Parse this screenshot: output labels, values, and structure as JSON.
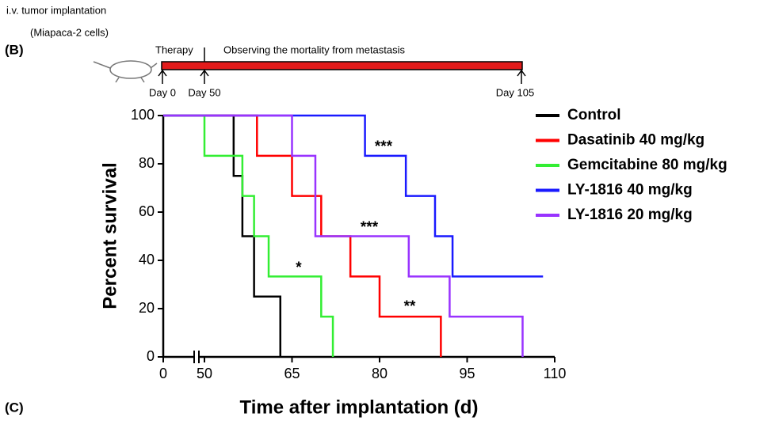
{
  "figure": {
    "panel_b": "(B)",
    "panel_c": "(C)",
    "implant_line1": "i.v. tumor implantation",
    "implant_line2": "(Miapaca-2 cells)",
    "therapy": "Therapy",
    "observing": "Observing the mortality from metastasis",
    "day_labels": [
      "Day 0",
      "Day 50",
      "Day 105"
    ]
  },
  "chart_data": {
    "type": "step",
    "xlabel": "Time after implantation (d)",
    "ylabel": "Percent survival",
    "xlim": [
      0,
      110
    ],
    "x_axis_break": [
      0,
      50
    ],
    "ylim": [
      0,
      100
    ],
    "xticks": [
      0,
      50,
      65,
      80,
      95,
      110
    ],
    "yticks": [
      0,
      20,
      40,
      60,
      80,
      100
    ],
    "legend": "upper right",
    "series": [
      {
        "name": "Control",
        "color": "#000000",
        "x": [
          0,
          55,
          56.5,
          58.5,
          63
        ],
        "values": [
          100,
          75,
          50,
          25,
          0
        ]
      },
      {
        "name": "Dasatinib 40 mg/kg",
        "color": "#ff0000",
        "x": [
          0,
          59,
          65,
          70,
          75,
          80,
          90.5
        ],
        "values": [
          100,
          83.3,
          66.7,
          50,
          33.3,
          16.7,
          0
        ]
      },
      {
        "name": "Gemcitabine 80  mg/kg",
        "color": "#33ee33",
        "x": [
          0,
          50,
          56.5,
          58.5,
          61,
          70,
          72
        ],
        "values": [
          100,
          83.3,
          66.7,
          50,
          33.3,
          16.7,
          0
        ]
      },
      {
        "name": "LY-1816 40 mg/kg",
        "color": "#1a1aff",
        "x": [
          0,
          77.5,
          84.5,
          89.5,
          92.5,
          108
        ],
        "values": [
          100,
          83.3,
          66.7,
          50,
          33.3,
          33.3
        ]
      },
      {
        "name": "LY-1816 20 mg/kg",
        "color": "#9933ff",
        "x": [
          0,
          65,
          69,
          85,
          92,
          104.5
        ],
        "values": [
          100,
          83.3,
          50,
          33.3,
          16.7,
          0
        ]
      }
    ],
    "annotations": [
      "***",
      "***",
      "*",
      "**"
    ]
  }
}
